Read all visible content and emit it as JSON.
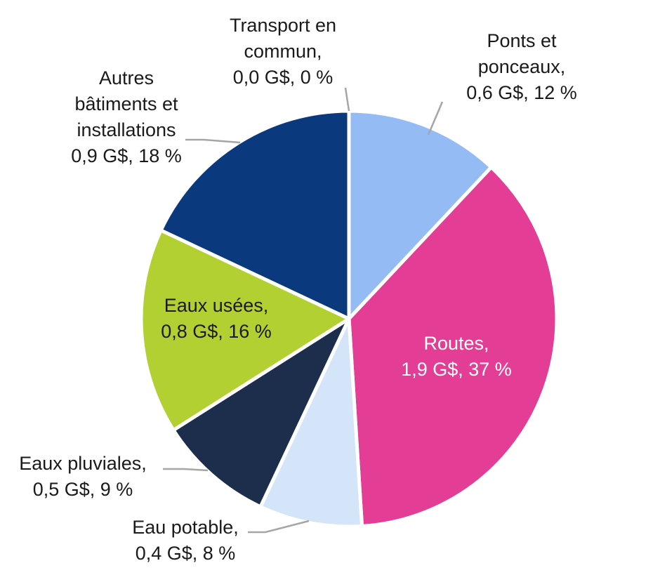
{
  "chart_data": {
    "type": "pie",
    "unit": "G$",
    "start_angle_deg": 0,
    "direction": "clockwise",
    "slices": [
      {
        "name": "Ponts et ponceaux",
        "lines": [
          "Ponts et",
          "ponceaux,",
          "0,6 G$, 12 %"
        ],
        "value": 0.6,
        "percent": 12,
        "color": "#94BBF4"
      },
      {
        "name": "Routes",
        "lines": [
          "Routes,",
          "1,9 G$, 37 %"
        ],
        "value": 1.9,
        "percent": 37,
        "color": "#E33D95"
      },
      {
        "name": "Eau potable",
        "lines": [
          "Eau potable,",
          "0,4 G$, 8 %"
        ],
        "value": 0.4,
        "percent": 8,
        "color": "#D4E4F9"
      },
      {
        "name": "Eaux pluviales",
        "lines": [
          "Eaux pluviales,",
          "0,5 G$, 9 %"
        ],
        "value": 0.5,
        "percent": 9,
        "color": "#1C2E4B"
      },
      {
        "name": "Eaux usées",
        "lines": [
          "Eaux usées,",
          "0,8 G$, 16 %"
        ],
        "value": 0.8,
        "percent": 16,
        "color": "#B3D033"
      },
      {
        "name": "Autres bâtiments et installations",
        "lines": [
          "Autres",
          "bâtiments et",
          "installations",
          "0,9 G$, 18 %"
        ],
        "value": 0.9,
        "percent": 18,
        "color": "#0A397D"
      },
      {
        "name": "Transport en commun",
        "lines": [
          "Transport en",
          "commun,",
          "0,0 G$, 0 %"
        ],
        "value": 0.0,
        "percent": 0,
        "color": "#0A397D"
      }
    ]
  }
}
